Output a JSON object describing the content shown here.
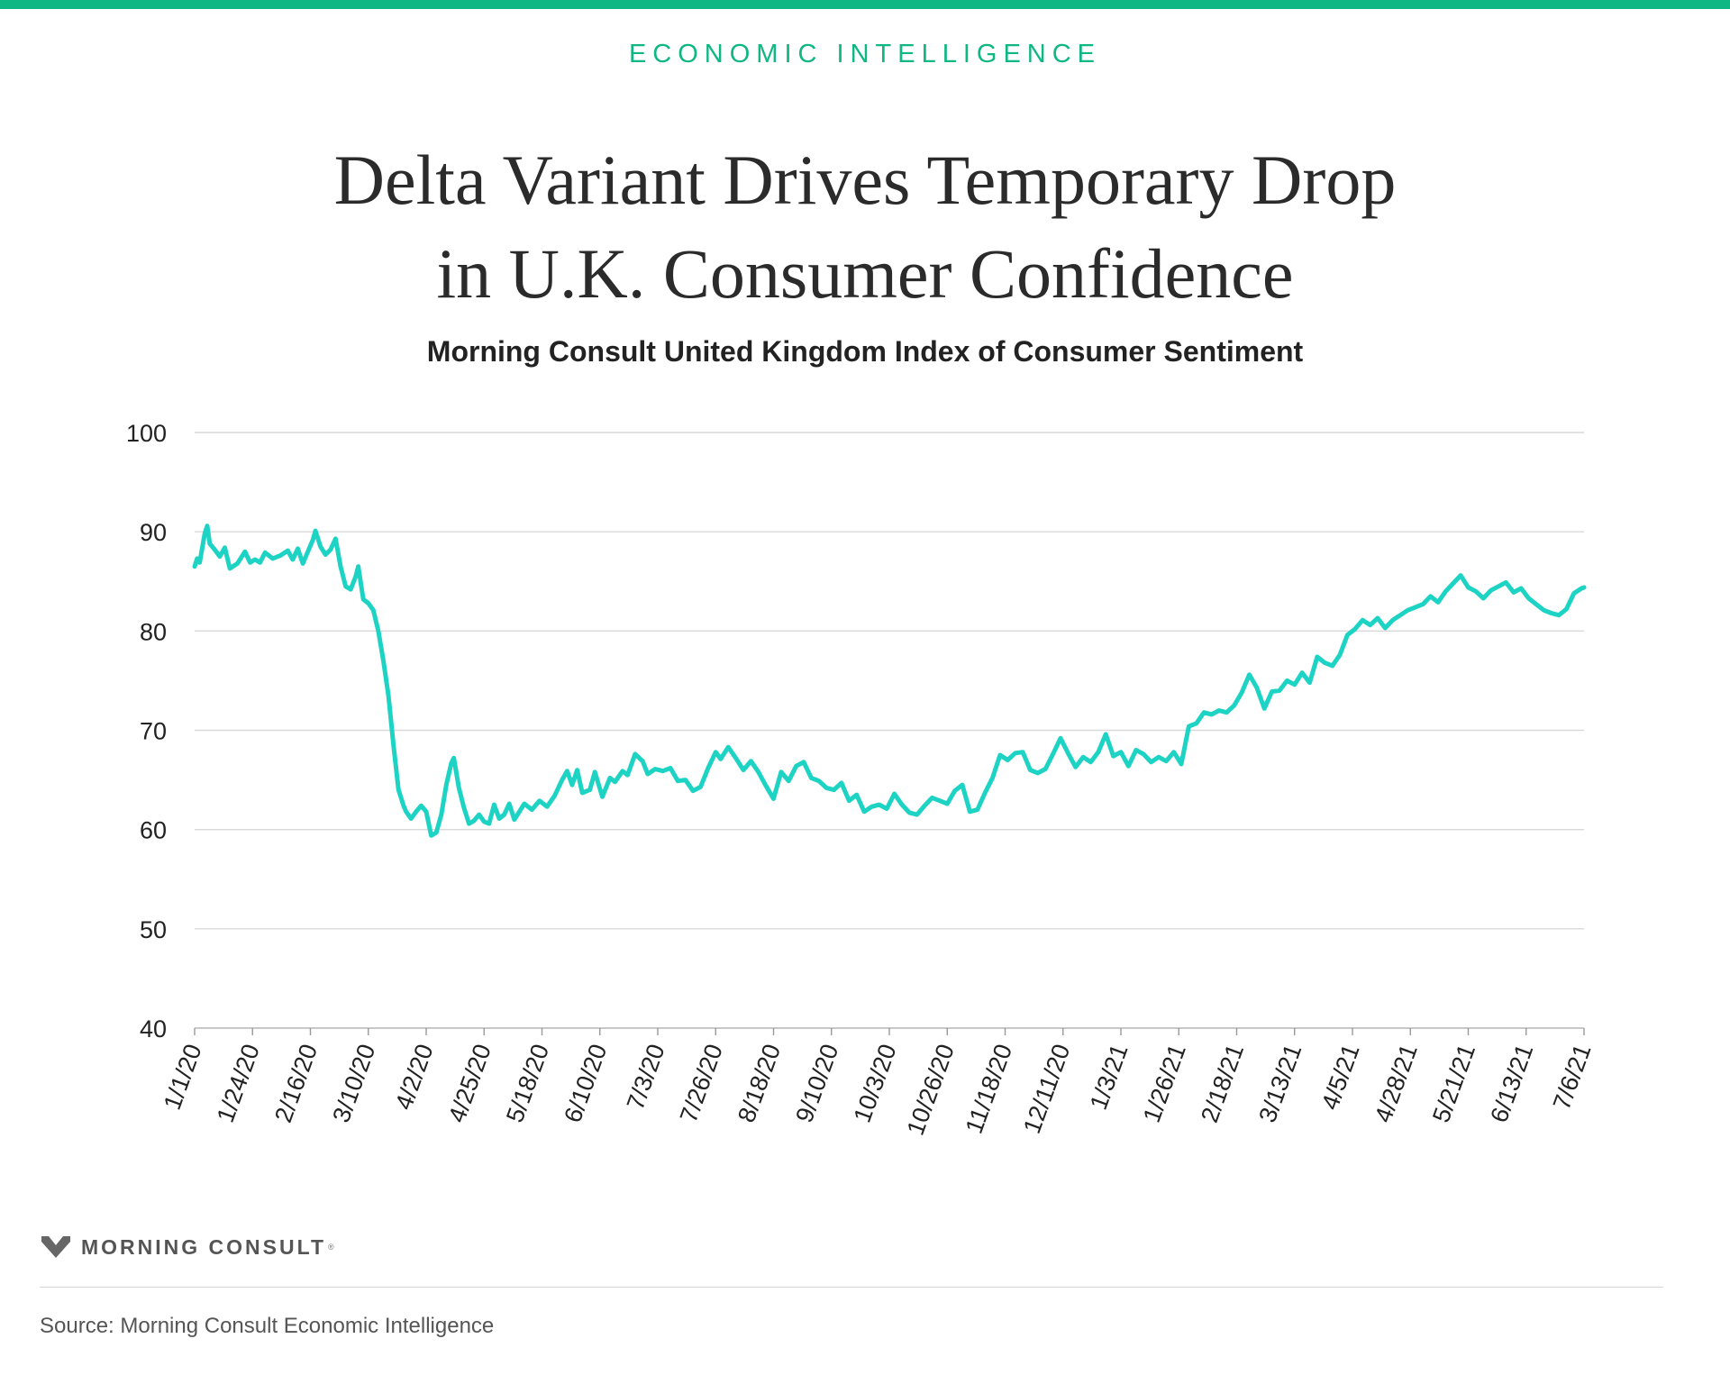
{
  "header": {
    "eyebrow": "ECONOMIC INTELLIGENCE",
    "title_line1": "Delta Variant Drives Temporary Drop",
    "title_line2": "in U.K. Consumer Confidence",
    "subtitle": "Morning Consult United Kingdom Index of Consumer Sentiment"
  },
  "colors": {
    "accent": "#0fb783",
    "line": "#1dd3c4",
    "grid": "#d9d9d9"
  },
  "chart_data": {
    "type": "line",
    "title": "Morning Consult United Kingdom Index of Consumer Sentiment",
    "xlabel": "",
    "ylabel": "",
    "ylim": [
      40,
      100
    ],
    "yticks": [
      40,
      50,
      60,
      70,
      80,
      90,
      100
    ],
    "grid": true,
    "xtick_labels": [
      "1/1/20",
      "1/24/20",
      "2/16/20",
      "3/10/20",
      "4/2/20",
      "4/25/20",
      "5/18/20",
      "6/10/20",
      "7/3/20",
      "7/26/20",
      "8/18/20",
      "9/10/20",
      "10/3/20",
      "10/26/20",
      "11/18/20",
      "12/11/20",
      "1/3/21",
      "1/26/21",
      "2/18/21",
      "3/13/21",
      "4/5/21",
      "4/28/21",
      "5/21/21",
      "6/13/21",
      "7/6/21"
    ],
    "series": [
      {
        "values": [
          {
            "x": "2020-01-01",
            "y": 86.5
          },
          {
            "x": "2020-01-02",
            "y": 87.3
          },
          {
            "x": "2020-01-03",
            "y": 86.9
          },
          {
            "x": "2020-01-05",
            "y": 89.8
          },
          {
            "x": "2020-01-06",
            "y": 90.6
          },
          {
            "x": "2020-01-07",
            "y": 88.8
          },
          {
            "x": "2020-01-09",
            "y": 88.2
          },
          {
            "x": "2020-01-11",
            "y": 87.5
          },
          {
            "x": "2020-01-13",
            "y": 88.4
          },
          {
            "x": "2020-01-15",
            "y": 86.3
          },
          {
            "x": "2020-01-18",
            "y": 86.8
          },
          {
            "x": "2020-01-21",
            "y": 88.0
          },
          {
            "x": "2020-01-23",
            "y": 86.9
          },
          {
            "x": "2020-01-25",
            "y": 87.2
          },
          {
            "x": "2020-01-27",
            "y": 86.9
          },
          {
            "x": "2020-01-29",
            "y": 87.9
          },
          {
            "x": "2020-02-01",
            "y": 87.3
          },
          {
            "x": "2020-02-04",
            "y": 87.6
          },
          {
            "x": "2020-02-07",
            "y": 88.1
          },
          {
            "x": "2020-02-09",
            "y": 87.2
          },
          {
            "x": "2020-02-11",
            "y": 88.3
          },
          {
            "x": "2020-02-13",
            "y": 86.8
          },
          {
            "x": "2020-02-15",
            "y": 88.0
          },
          {
            "x": "2020-02-17",
            "y": 89.2
          },
          {
            "x": "2020-02-18",
            "y": 90.1
          },
          {
            "x": "2020-02-20",
            "y": 88.5
          },
          {
            "x": "2020-02-22",
            "y": 87.7
          },
          {
            "x": "2020-02-24",
            "y": 88.2
          },
          {
            "x": "2020-02-26",
            "y": 89.3
          },
          {
            "x": "2020-02-28",
            "y": 86.5
          },
          {
            "x": "2020-03-01",
            "y": 84.5
          },
          {
            "x": "2020-03-03",
            "y": 84.2
          },
          {
            "x": "2020-03-05",
            "y": 85.5
          },
          {
            "x": "2020-03-06",
            "y": 86.5
          },
          {
            "x": "2020-03-08",
            "y": 83.2
          },
          {
            "x": "2020-03-10",
            "y": 82.8
          },
          {
            "x": "2020-03-12",
            "y": 82.1
          },
          {
            "x": "2020-03-14",
            "y": 80.0
          },
          {
            "x": "2020-03-16",
            "y": 77.0
          },
          {
            "x": "2020-03-18",
            "y": 73.5
          },
          {
            "x": "2020-03-20",
            "y": 68.5
          },
          {
            "x": "2020-03-22",
            "y": 64.0
          },
          {
            "x": "2020-03-24",
            "y": 62.4
          },
          {
            "x": "2020-03-25",
            "y": 61.8
          },
          {
            "x": "2020-03-27",
            "y": 61.1
          },
          {
            "x": "2020-03-29",
            "y": 61.8
          },
          {
            "x": "2020-03-31",
            "y": 62.4
          },
          {
            "x": "2020-04-02",
            "y": 61.8
          },
          {
            "x": "2020-04-04",
            "y": 59.4
          },
          {
            "x": "2020-04-06",
            "y": 59.7
          },
          {
            "x": "2020-04-08",
            "y": 61.5
          },
          {
            "x": "2020-04-10",
            "y": 64.5
          },
          {
            "x": "2020-04-12",
            "y": 66.7
          },
          {
            "x": "2020-04-13",
            "y": 67.2
          },
          {
            "x": "2020-04-15",
            "y": 64.2
          },
          {
            "x": "2020-04-17",
            "y": 62.2
          },
          {
            "x": "2020-04-19",
            "y": 60.6
          },
          {
            "x": "2020-04-21",
            "y": 60.9
          },
          {
            "x": "2020-04-23",
            "y": 61.5
          },
          {
            "x": "2020-04-25",
            "y": 60.8
          },
          {
            "x": "2020-04-27",
            "y": 60.6
          },
          {
            "x": "2020-04-29",
            "y": 62.5
          },
          {
            "x": "2020-05-01",
            "y": 61.1
          },
          {
            "x": "2020-05-03",
            "y": 61.5
          },
          {
            "x": "2020-05-05",
            "y": 62.6
          },
          {
            "x": "2020-05-07",
            "y": 61.0
          },
          {
            "x": "2020-05-09",
            "y": 61.8
          },
          {
            "x": "2020-05-11",
            "y": 62.6
          },
          {
            "x": "2020-05-14",
            "y": 62.0
          },
          {
            "x": "2020-05-17",
            "y": 62.9
          },
          {
            "x": "2020-05-20",
            "y": 62.3
          },
          {
            "x": "2020-05-23",
            "y": 63.4
          },
          {
            "x": "2020-05-26",
            "y": 65.0
          },
          {
            "x": "2020-05-28",
            "y": 65.9
          },
          {
            "x": "2020-05-30",
            "y": 64.5
          },
          {
            "x": "2020-06-01",
            "y": 66.0
          },
          {
            "x": "2020-06-03",
            "y": 63.7
          },
          {
            "x": "2020-06-06",
            "y": 64.0
          },
          {
            "x": "2020-06-08",
            "y": 65.8
          },
          {
            "x": "2020-06-11",
            "y": 63.3
          },
          {
            "x": "2020-06-14",
            "y": 65.2
          },
          {
            "x": "2020-06-16",
            "y": 64.8
          },
          {
            "x": "2020-06-19",
            "y": 65.9
          },
          {
            "x": "2020-06-21",
            "y": 65.5
          },
          {
            "x": "2020-06-24",
            "y": 67.6
          },
          {
            "x": "2020-06-27",
            "y": 66.9
          },
          {
            "x": "2020-06-29",
            "y": 65.6
          },
          {
            "x": "2020-07-02",
            "y": 66.1
          },
          {
            "x": "2020-07-05",
            "y": 65.9
          },
          {
            "x": "2020-07-08",
            "y": 66.2
          },
          {
            "x": "2020-07-11",
            "y": 64.9
          },
          {
            "x": "2020-07-14",
            "y": 65.0
          },
          {
            "x": "2020-07-17",
            "y": 63.9
          },
          {
            "x": "2020-07-20",
            "y": 64.3
          },
          {
            "x": "2020-07-23",
            "y": 66.2
          },
          {
            "x": "2020-07-26",
            "y": 67.8
          },
          {
            "x": "2020-07-28",
            "y": 67.1
          },
          {
            "x": "2020-07-31",
            "y": 68.3
          },
          {
            "x": "2020-08-03",
            "y": 67.2
          },
          {
            "x": "2020-08-06",
            "y": 66.0
          },
          {
            "x": "2020-08-09",
            "y": 66.9
          },
          {
            "x": "2020-08-12",
            "y": 65.8
          },
          {
            "x": "2020-08-15",
            "y": 64.4
          },
          {
            "x": "2020-08-18",
            "y": 63.1
          },
          {
            "x": "2020-08-21",
            "y": 65.8
          },
          {
            "x": "2020-08-24",
            "y": 64.9
          },
          {
            "x": "2020-08-27",
            "y": 66.4
          },
          {
            "x": "2020-08-30",
            "y": 66.8
          },
          {
            "x": "2020-09-02",
            "y": 65.2
          },
          {
            "x": "2020-09-05",
            "y": 64.9
          },
          {
            "x": "2020-09-08",
            "y": 64.2
          },
          {
            "x": "2020-09-11",
            "y": 64.0
          },
          {
            "x": "2020-09-14",
            "y": 64.7
          },
          {
            "x": "2020-09-17",
            "y": 62.9
          },
          {
            "x": "2020-09-20",
            "y": 63.5
          },
          {
            "x": "2020-09-23",
            "y": 61.8
          },
          {
            "x": "2020-09-26",
            "y": 62.3
          },
          {
            "x": "2020-09-29",
            "y": 62.5
          },
          {
            "x": "2020-10-02",
            "y": 62.1
          },
          {
            "x": "2020-10-05",
            "y": 63.6
          },
          {
            "x": "2020-10-08",
            "y": 62.5
          },
          {
            "x": "2020-10-11",
            "y": 61.7
          },
          {
            "x": "2020-10-14",
            "y": 61.5
          },
          {
            "x": "2020-10-17",
            "y": 62.4
          },
          {
            "x": "2020-10-20",
            "y": 63.2
          },
          {
            "x": "2020-10-23",
            "y": 62.9
          },
          {
            "x": "2020-10-26",
            "y": 62.6
          },
          {
            "x": "2020-10-29",
            "y": 63.9
          },
          {
            "x": "2020-11-01",
            "y": 64.5
          },
          {
            "x": "2020-11-04",
            "y": 61.8
          },
          {
            "x": "2020-11-07",
            "y": 62.0
          },
          {
            "x": "2020-11-10",
            "y": 63.7
          },
          {
            "x": "2020-11-13",
            "y": 65.2
          },
          {
            "x": "2020-11-16",
            "y": 67.5
          },
          {
            "x": "2020-11-19",
            "y": 67.0
          },
          {
            "x": "2020-11-22",
            "y": 67.7
          },
          {
            "x": "2020-11-25",
            "y": 67.8
          },
          {
            "x": "2020-11-28",
            "y": 66.0
          },
          {
            "x": "2020-12-01",
            "y": 65.7
          },
          {
            "x": "2020-12-04",
            "y": 66.1
          },
          {
            "x": "2020-12-07",
            "y": 67.6
          },
          {
            "x": "2020-12-10",
            "y": 69.2
          },
          {
            "x": "2020-12-13",
            "y": 67.7
          },
          {
            "x": "2020-12-16",
            "y": 66.3
          },
          {
            "x": "2020-12-19",
            "y": 67.3
          },
          {
            "x": "2020-12-22",
            "y": 66.8
          },
          {
            "x": "2020-12-25",
            "y": 67.8
          },
          {
            "x": "2020-12-28",
            "y": 69.6
          },
          {
            "x": "2020-12-31",
            "y": 67.4
          },
          {
            "x": "2021-01-03",
            "y": 67.8
          },
          {
            "x": "2021-01-06",
            "y": 66.4
          },
          {
            "x": "2021-01-09",
            "y": 68.0
          },
          {
            "x": "2021-01-12",
            "y": 67.6
          },
          {
            "x": "2021-01-15",
            "y": 66.8
          },
          {
            "x": "2021-01-18",
            "y": 67.3
          },
          {
            "x": "2021-01-21",
            "y": 66.9
          },
          {
            "x": "2021-01-24",
            "y": 67.8
          },
          {
            "x": "2021-01-27",
            "y": 66.6
          },
          {
            "x": "2021-01-30",
            "y": 70.4
          },
          {
            "x": "2021-02-02",
            "y": 70.7
          },
          {
            "x": "2021-02-05",
            "y": 71.8
          },
          {
            "x": "2021-02-08",
            "y": 71.6
          },
          {
            "x": "2021-02-11",
            "y": 72.0
          },
          {
            "x": "2021-02-14",
            "y": 71.8
          },
          {
            "x": "2021-02-17",
            "y": 72.5
          },
          {
            "x": "2021-02-20",
            "y": 73.8
          },
          {
            "x": "2021-02-23",
            "y": 75.6
          },
          {
            "x": "2021-02-26",
            "y": 74.3
          },
          {
            "x": "2021-03-01",
            "y": 72.2
          },
          {
            "x": "2021-03-04",
            "y": 73.9
          },
          {
            "x": "2021-03-07",
            "y": 74.0
          },
          {
            "x": "2021-03-10",
            "y": 75.0
          },
          {
            "x": "2021-03-13",
            "y": 74.6
          },
          {
            "x": "2021-03-16",
            "y": 75.8
          },
          {
            "x": "2021-03-19",
            "y": 74.8
          },
          {
            "x": "2021-03-22",
            "y": 77.4
          },
          {
            "x": "2021-03-25",
            "y": 76.8
          },
          {
            "x": "2021-03-28",
            "y": 76.5
          },
          {
            "x": "2021-03-31",
            "y": 77.6
          },
          {
            "x": "2021-04-03",
            "y": 79.6
          },
          {
            "x": "2021-04-06",
            "y": 80.2
          },
          {
            "x": "2021-04-09",
            "y": 81.1
          },
          {
            "x": "2021-04-12",
            "y": 80.6
          },
          {
            "x": "2021-04-15",
            "y": 81.3
          },
          {
            "x": "2021-04-18",
            "y": 80.3
          },
          {
            "x": "2021-04-21",
            "y": 81.1
          },
          {
            "x": "2021-04-24",
            "y": 81.6
          },
          {
            "x": "2021-04-27",
            "y": 82.1
          },
          {
            "x": "2021-04-30",
            "y": 82.4
          },
          {
            "x": "2021-05-03",
            "y": 82.7
          },
          {
            "x": "2021-05-06",
            "y": 83.5
          },
          {
            "x": "2021-05-09",
            "y": 82.9
          },
          {
            "x": "2021-05-12",
            "y": 84.0
          },
          {
            "x": "2021-05-15",
            "y": 84.8
          },
          {
            "x": "2021-05-18",
            "y": 85.6
          },
          {
            "x": "2021-05-21",
            "y": 84.4
          },
          {
            "x": "2021-05-24",
            "y": 84.0
          },
          {
            "x": "2021-05-27",
            "y": 83.3
          },
          {
            "x": "2021-05-30",
            "y": 84.1
          },
          {
            "x": "2021-06-02",
            "y": 84.5
          },
          {
            "x": "2021-06-05",
            "y": 84.9
          },
          {
            "x": "2021-06-08",
            "y": 83.9
          },
          {
            "x": "2021-06-11",
            "y": 84.3
          },
          {
            "x": "2021-06-14",
            "y": 83.3
          },
          {
            "x": "2021-06-17",
            "y": 82.7
          },
          {
            "x": "2021-06-20",
            "y": 82.1
          },
          {
            "x": "2021-06-23",
            "y": 81.8
          },
          {
            "x": "2021-06-26",
            "y": 81.6
          },
          {
            "x": "2021-06-29",
            "y": 82.2
          },
          {
            "x": "2021-07-02",
            "y": 83.8
          },
          {
            "x": "2021-07-05",
            "y": 84.3
          },
          {
            "x": "2021-07-06",
            "y": 84.4
          }
        ]
      }
    ]
  },
  "brand": {
    "logo_text": "MORNING CONSULT"
  },
  "footer": {
    "source": "Source: Morning Consult Economic Intelligence"
  }
}
